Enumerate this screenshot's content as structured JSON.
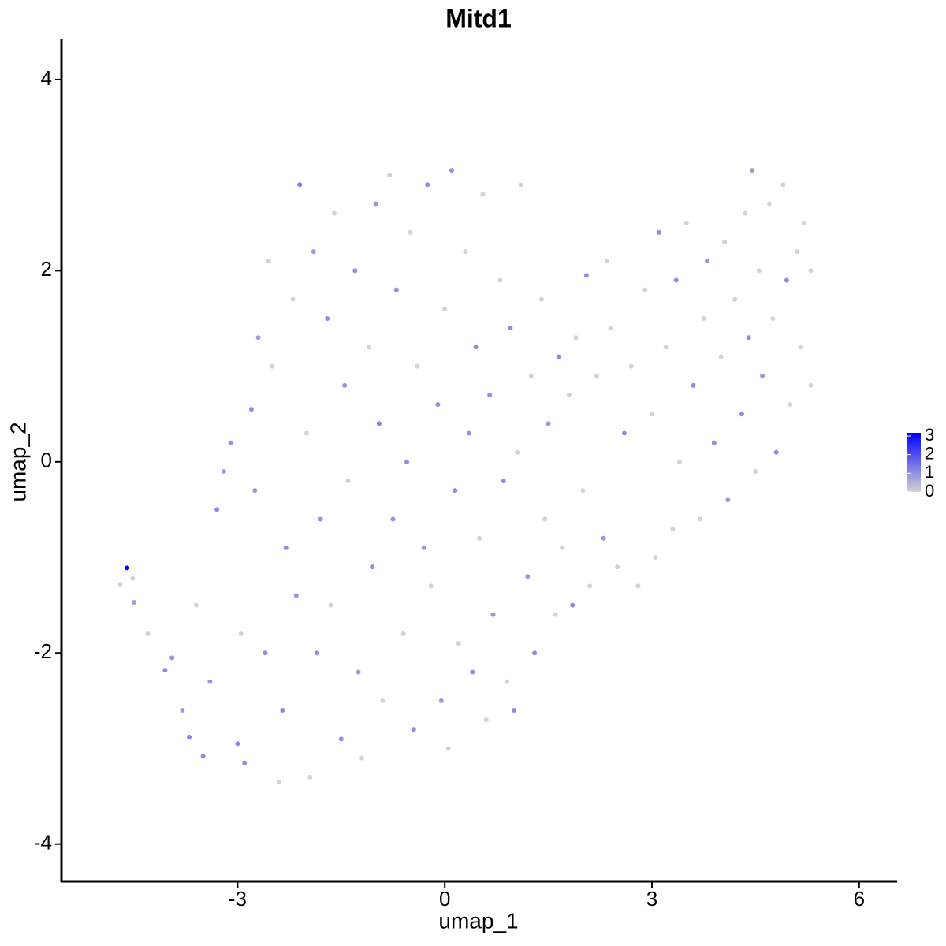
{
  "chart_data": {
    "type": "scatter",
    "title": "Mitd1",
    "x_label": "umap_1",
    "y_label": "umap_2",
    "xlim": [
      -5.55,
      6.55
    ],
    "ylim": [
      -4.39,
      4.42
    ],
    "xticks": [
      -3,
      0,
      3,
      6
    ],
    "yticks": [
      -4,
      -2,
      0,
      2,
      4
    ],
    "low_color": "#d3d3d3",
    "high_color": "#0000ff",
    "color_lim": [
      0,
      3
    ],
    "color_ticks": [
      0,
      1,
      2,
      3
    ],
    "x": [
      -4.6,
      -4.7,
      -4.52,
      -4.5,
      -4.3,
      -4.05,
      -3.95,
      -3.8,
      -3.7,
      -3.6,
      -3.5,
      -3.4,
      -3.3,
      -3.2,
      -3.1,
      -3.0,
      -2.95,
      -2.9,
      -2.8,
      -2.75,
      -2.7,
      -2.6,
      -2.55,
      -2.5,
      -2.4,
      -2.35,
      -2.3,
      -2.2,
      -2.15,
      -2.1,
      -2.0,
      -1.95,
      -1.9,
      -1.85,
      -1.8,
      -1.7,
      -1.65,
      -1.6,
      -1.5,
      -1.45,
      -1.4,
      -1.3,
      -1.25,
      -1.2,
      -1.1,
      -1.05,
      -1.0,
      -0.95,
      -0.9,
      -0.8,
      -0.75,
      -0.7,
      -0.6,
      -0.55,
      -0.5,
      -0.45,
      -0.4,
      -0.3,
      -0.25,
      -0.2,
      -0.1,
      -0.05,
      0.0,
      0.05,
      0.1,
      0.15,
      0.2,
      0.3,
      0.35,
      0.4,
      0.45,
      0.5,
      0.55,
      0.6,
      0.65,
      0.7,
      0.8,
      0.85,
      0.9,
      0.95,
      1.0,
      1.05,
      1.1,
      1.2,
      1.25,
      1.3,
      1.4,
      1.45,
      1.5,
      1.6,
      1.65,
      1.7,
      1.8,
      1.85,
      1.9,
      2.0,
      2.05,
      2.1,
      2.2,
      2.3,
      2.35,
      2.4,
      2.5,
      2.6,
      2.7,
      2.8,
      2.9,
      3.0,
      3.05,
      3.1,
      3.2,
      3.3,
      3.35,
      3.4,
      3.5,
      3.6,
      3.7,
      3.75,
      3.8,
      3.9,
      4.0,
      4.05,
      4.1,
      4.2,
      4.3,
      4.35,
      4.4,
      4.45,
      4.5,
      4.55,
      4.6,
      4.7,
      4.75,
      4.8,
      4.9,
      4.95,
      5.0,
      5.1,
      5.15,
      5.2,
      5.3,
      5.3
    ],
    "y": [
      -1.11,
      -1.28,
      -1.22,
      -1.47,
      -1.8,
      -2.18,
      -2.05,
      -2.6,
      -2.88,
      -1.5,
      -3.08,
      -2.3,
      -0.5,
      -0.1,
      0.2,
      -2.95,
      -1.8,
      -3.15,
      0.55,
      -0.3,
      1.3,
      -2.0,
      2.1,
      1.0,
      -3.35,
      -2.6,
      -0.9,
      1.7,
      -1.4,
      2.9,
      0.3,
      -3.3,
      2.2,
      -2.0,
      -0.6,
      1.5,
      -1.5,
      2.6,
      -2.9,
      0.8,
      -0.2,
      2.0,
      -2.2,
      -3.1,
      1.2,
      -1.1,
      2.7,
      0.4,
      -2.5,
      3.0,
      -0.6,
      1.8,
      -1.8,
      0.0,
      2.4,
      -2.8,
      1.0,
      -0.9,
      2.9,
      -1.3,
      0.6,
      -2.5,
      1.6,
      -3.0,
      3.05,
      -0.3,
      -1.9,
      2.2,
      0.3,
      -2.2,
      1.2,
      -0.8,
      2.8,
      -2.7,
      0.7,
      -1.6,
      1.9,
      -0.2,
      -2.3,
      1.4,
      -2.6,
      0.1,
      2.9,
      -1.2,
      0.9,
      -2.0,
      1.7,
      -0.6,
      0.4,
      -1.6,
      1.1,
      -0.9,
      0.7,
      -1.5,
      1.3,
      -0.3,
      1.95,
      -1.3,
      0.9,
      -0.8,
      2.1,
      1.4,
      -1.1,
      0.3,
      1.0,
      -1.3,
      1.8,
      0.5,
      -1.0,
      2.4,
      1.2,
      -0.7,
      1.9,
      0.0,
      2.5,
      0.8,
      -0.6,
      1.5,
      2.1,
      0.2,
      1.1,
      2.3,
      -0.4,
      1.7,
      0.5,
      2.6,
      1.3,
      3.05,
      -0.1,
      2.0,
      0.9,
      2.7,
      1.5,
      0.1,
      2.9,
      1.9,
      0.6,
      2.2,
      1.2,
      2.5,
      2.0,
      0.8
    ],
    "values": [
      3,
      0,
      0,
      0.8,
      0,
      1,
      0.9,
      0.8,
      1.1,
      0,
      1,
      0.9,
      1,
      0.8,
      0.9,
      1.1,
      0,
      1,
      1,
      0.9,
      0.8,
      1,
      0,
      0,
      0,
      1.1,
      1,
      0,
      0.9,
      1.2,
      0,
      0,
      0.8,
      1,
      0.9,
      1,
      0,
      0,
      1,
      0.9,
      0,
      1,
      0.8,
      0,
      0,
      1,
      0.9,
      1.1,
      0,
      0,
      0.9,
      1,
      0,
      1,
      0,
      1,
      0,
      0.9,
      1,
      0,
      1,
      0.8,
      0,
      0,
      0.9,
      1,
      0,
      0,
      0.9,
      1,
      1,
      0,
      0,
      0,
      1,
      0.9,
      0,
      1,
      0,
      1,
      1,
      0,
      0,
      0.9,
      0,
      1,
      0,
      0,
      0.9,
      0,
      1,
      0,
      0,
      1,
      0,
      0,
      1,
      0,
      0,
      0.9,
      0,
      0,
      0,
      1,
      0,
      0,
      0,
      0,
      0,
      1,
      0,
      0,
      1,
      0,
      0,
      1,
      0,
      0,
      0.9,
      1,
      0,
      0,
      0.8,
      0,
      1,
      0,
      1,
      0.8,
      0,
      0,
      0.9,
      0,
      0,
      1,
      0,
      1,
      0,
      0,
      0,
      0,
      0,
      0
    ]
  }
}
